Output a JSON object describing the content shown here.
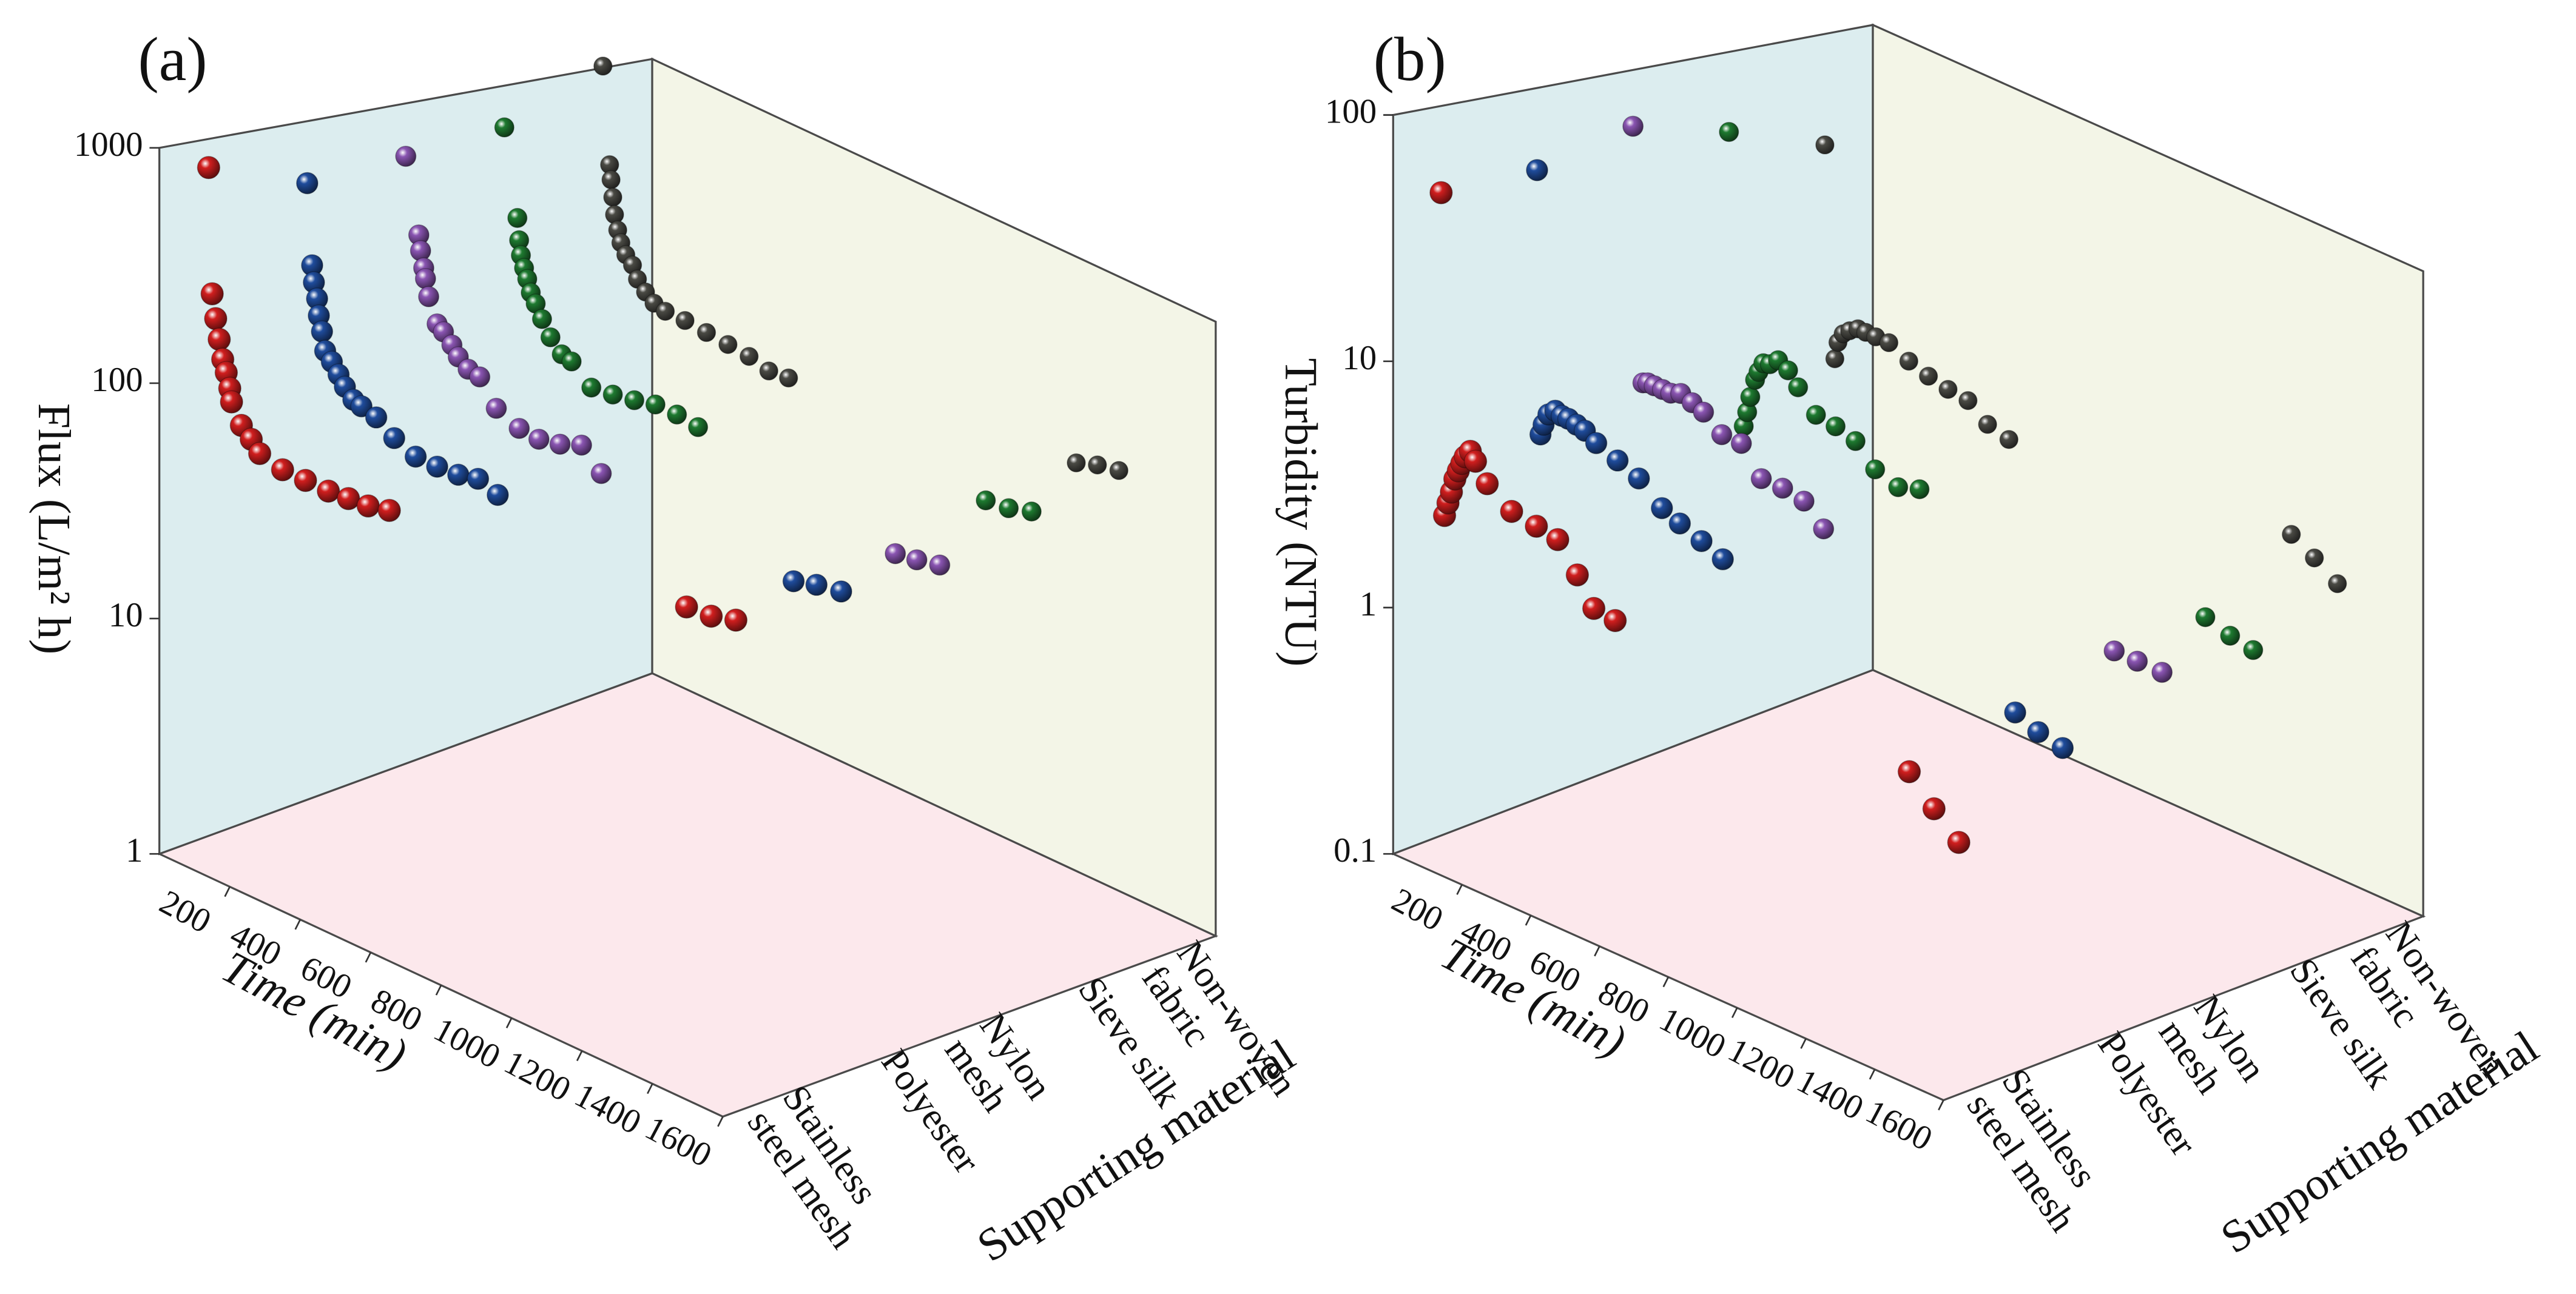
{
  "chart_data": [
    {
      "type": "scatter3d",
      "panel_label": "(a)",
      "y_label": "Flux (L/m² h)",
      "x_label": "Time (min)",
      "z_label": "Supporting material",
      "categories": [
        [
          "Stainless",
          "steel mesh"
        ],
        [
          "Polyester"
        ],
        [
          "Nylon",
          "mesh"
        ],
        [
          "Sieve silk"
        ],
        [
          "Non-woven",
          "fabric"
        ]
      ],
      "xlim": [
        0,
        1600
      ],
      "xticks": [
        200,
        400,
        600,
        800,
        1000,
        1200,
        1400,
        1600
      ],
      "ylim": [
        1,
        1000
      ],
      "yticks": [
        1,
        10,
        100,
        1000
      ],
      "log_y": true,
      "series": [
        {
          "color": "#d01e1e",
          "x": [
            0,
            10,
            20,
            30,
            40,
            50,
            60,
            65,
            93,
            121,
            145,
            210,
            275,
            340,
            397,
            453,
            513,
            1357,
            1427,
            1497
          ],
          "values": [
            753,
            219,
            174,
            144,
            120,
            107,
            93,
            82,
            68,
            62,
            56,
            53,
            53,
            53,
            54,
            55,
            58,
            88,
            90,
            97
          ]
        },
        {
          "color": "#1f4c9c",
          "x": [
            0,
            14,
            19,
            28,
            33,
            42,
            51,
            70,
            89,
            107,
            131,
            154,
            196,
            247,
            308,
            369,
            429,
            485,
            541,
            1381,
            1446,
            1516
          ],
          "values": [
            532,
            236,
            200,
            172,
            146,
            126,
            105,
            97,
            88,
            80,
            73,
            71,
            68,
            60,
            55,
            55,
            56,
            59,
            55,
            93,
            100,
            105
          ]
        },
        {
          "color": "#8a55b2",
          "x": [
            0,
            37,
            42,
            51,
            56,
            65,
            89,
            107,
            131,
            149,
            177,
            210,
            257,
            322,
            378,
            438,
            499,
            555,
            1390,
            1451,
            1516
          ],
          "values": [
            575,
            269,
            230,
            195,
            176,
            148,
            116,
            110,
            100,
            91,
            84,
            82,
            64,
            58,
            57,
            60,
            66,
            54,
            98,
            102,
            108
          ]
        },
        {
          "color": "#1e7a30",
          "x": [
            0,
            37,
            42,
            47,
            56,
            65,
            75,
            89,
            107,
            131,
            163,
            191,
            247,
            308,
            369,
            429,
            490,
            550,
            1367,
            1432,
            1497
          ],
          "values": [
            638,
            257,
            204,
            175,
            155,
            140,
            123,
            112,
            98,
            84,
            74,
            72,
            60,
            62,
            65,
            69,
            69,
            67,
            129,
            133,
            144
          ]
        },
        {
          "color": "#4a4a44",
          "x": [
            0,
            19,
            23,
            28,
            33,
            42,
            51,
            65,
            84,
            98,
            121,
            145,
            177,
            233,
            294,
            355,
            415,
            471,
            527,
            1344,
            1404,
            1465
          ],
          "values": [
            1020,
            354,
            302,
            251,
            209,
            179,
            158,
            142,
            131,
            115,
            104,
            96,
            93,
            93,
            91,
            89,
            87,
            82,
            84,
            145,
            158,
            166
          ]
        }
      ]
    },
    {
      "type": "scatter3d",
      "panel_label": "(b)",
      "y_label": "Turbidity (NTU)",
      "x_label": "Time (min)",
      "z_label": "Supporting material",
      "categories": [
        [
          "Stainless",
          "steel mesh"
        ],
        [
          "Polyester"
        ],
        [
          "Nylon",
          "mesh"
        ],
        [
          "Sieve silk"
        ],
        [
          "Non-woven",
          "fabric"
        ]
      ],
      "xlim": [
        0,
        1600
      ],
      "xticks": [
        200,
        400,
        600,
        800,
        1000,
        1200,
        1400,
        1600
      ],
      "ylim": [
        0.1,
        100
      ],
      "yticks": [
        0.1,
        1,
        10,
        100
      ],
      "log_y": true,
      "series": [
        {
          "color": "#d01e1e",
          "x": [
            0,
            10,
            20,
            30,
            40,
            50,
            60,
            70,
            85,
            100,
            134,
            205,
            277,
            339,
            396,
            444,
            506,
            1361,
            1433,
            1505
          ],
          "values": [
            44,
            2.1,
            2.4,
            2.7,
            3.1,
            3.4,
            3.7,
            4.0,
            4.3,
            4.0,
            3.4,
            2.9,
            2.8,
            2.7,
            2.1,
            1.64,
            1.6,
            1.33,
            1.04,
            0.84
          ]
        },
        {
          "color": "#1f4c9c",
          "x": [
            0,
            10,
            19,
            33,
            53,
            72,
            91,
            115,
            139,
            172,
            234,
            296,
            363,
            415,
            478,
            540,
            1390,
            1457,
            1528
          ],
          "values": [
            45,
            3.5,
            3.9,
            4.4,
            4.7,
            4.6,
            4.6,
            4.5,
            4.4,
            4.1,
            3.8,
            3.5,
            2.9,
            2.7,
            2.5,
            2.3,
            1.85,
            1.69,
            1.61
          ]
        },
        {
          "color": "#8a55b2",
          "x": [
            0,
            29,
            43,
            62,
            86,
            110,
            139,
            172,
            205,
            258,
            315,
            373,
            435,
            497,
            554,
            1399,
            1466,
            1538
          ],
          "values": [
            57,
            4.6,
            4.7,
            4.7,
            4.7,
            4.7,
            4.9,
            4.7,
            4.5,
            3.9,
            3.9,
            3.0,
            3.0,
            2.9,
            2.4,
            2.6,
            2.6,
            2.6
          ]
        },
        {
          "color": "#1e7a30",
          "x": [
            0,
            43,
            53,
            62,
            76,
            86,
            100,
            119,
            143,
            172,
            201,
            253,
            310,
            368,
            425,
            492,
            554,
            1385,
            1457,
            1524
          ],
          "values": [
            44,
            2.3,
            2.7,
            3.2,
            3.9,
            4.3,
            4.8,
            4.9,
            5.3,
            5.0,
            4.4,
            3.6,
            3.5,
            3.3,
            2.7,
            2.5,
            2.7,
            2.7,
            2.5,
            2.4
          ]
        },
        {
          "color": "#4a4a44",
          "x": [
            0,
            29,
            38,
            53,
            72,
            96,
            119,
            148,
            186,
            244,
            301,
            358,
            416,
            473,
            535,
            1356,
            1423,
            1490
          ],
          "values": [
            31,
            3.4,
            4.1,
            4.6,
            4.9,
            5.2,
            5.2,
            5.2,
            5.2,
            4.7,
            4.4,
            4.2,
            4.1,
            3.5,
            3.3,
            4.6,
            4.0,
            3.4
          ]
        }
      ]
    }
  ]
}
